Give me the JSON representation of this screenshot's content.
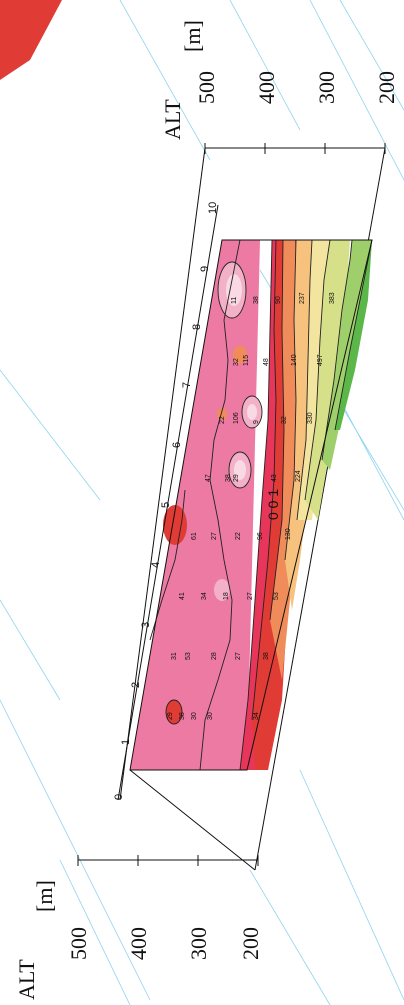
{
  "axes": {
    "left": {
      "title": "ALT",
      "unit": "[m]",
      "ticks": [
        "500",
        "400",
        "300",
        "200"
      ]
    },
    "right": {
      "title": "ALT",
      "unit": "[m]",
      "ticks": [
        "500",
        "400",
        "300",
        "200"
      ]
    },
    "distance_ticks": [
      "0",
      "1",
      "2",
      "3",
      "4",
      "5",
      "6",
      "7",
      "8",
      "9",
      "10"
    ]
  },
  "contour_label": "0 0 1",
  "data_points": {
    "row_1": [
      "29",
      "31",
      "41",
      "61",
      "47",
      "22",
      "32"
    ],
    "row_2": [
      "38",
      "53",
      "34",
      "27",
      "38",
      "106",
      "115",
      "11"
    ],
    "row_3": [
      "30",
      "28",
      "18",
      "29",
      "9",
      "48",
      "38"
    ],
    "row_4": [
      "30",
      "27",
      "27",
      "22",
      "43",
      "32",
      "140",
      "90",
      "237"
    ],
    "row_5": [
      "34",
      "38",
      "53",
      "96",
      "130",
      "224",
      "330",
      "497",
      "383"
    ]
  },
  "colors": {
    "deep_red": "#e03c35",
    "red": "#e84a3c",
    "crimson": "#e8355a",
    "pink": "#ec7aa3",
    "light_pink": "#f3b1c8",
    "pale_pink": "#f8d9e4",
    "orange": "#f08c5a",
    "peach": "#f6c27e",
    "light_yellow": "#f3e4a0",
    "lime": "#d6e089",
    "light_green": "#9fcf6a",
    "green": "#5bb848",
    "guide_line": "#8fd4ef"
  }
}
